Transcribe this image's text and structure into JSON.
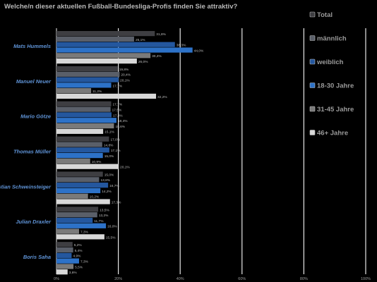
{
  "title": "Welche/n dieser aktuellen Fußball-Bundesliga-Profis finden Sie attraktiv?",
  "chart_data": {
    "type": "bar",
    "orientation": "horizontal",
    "title": "Welche/n dieser aktuellen Fußball-Bundesliga-Profis finden Sie attraktiv?",
    "categories": [
      "Mats Hummels",
      "Manuel Neuer",
      "Mario Götze",
      "Thomas Müller",
      "Bastian Schweinsteiger",
      "Julian Draxler",
      "Boris Saha"
    ],
    "series": [
      {
        "name": "Total",
        "color": "#3e3e42",
        "values": [
          31.8,
          19.8,
          17.7,
          17.0,
          15.0,
          13.5,
          5.2
        ]
      },
      {
        "name": "männlich",
        "color": "#5a5f69",
        "values": [
          25.1,
          20.4,
          17.5,
          14.8,
          13.8,
          13.2,
          5.4
        ]
      },
      {
        "name": "weiblich",
        "color": "#24579e",
        "values": [
          38.3,
          20.1,
          17.8,
          17.1,
          16.7,
          11.7,
          4.9
        ]
      },
      {
        "name": "18-30 Jahre",
        "color": "#2d72c8",
        "values": [
          44.0,
          17.7,
          19.4,
          15.0,
          14.2,
          16.0,
          7.3
        ]
      },
      {
        "name": "31-45 Jahre",
        "color": "#7a7a7a",
        "values": [
          30.4,
          11.2,
          18.6,
          10.9,
          10.2,
          7.3,
          5.5
        ]
      },
      {
        "name": "46+ Jahre",
        "color": "#d8d8d8",
        "values": [
          26.0,
          32.2,
          15.1,
          20.1,
          17.3,
          15.5,
          3.6
        ]
      }
    ],
    "value_labels": [
      [
        "31,8%",
        "25,1%",
        "38,3%",
        "44,0%",
        "30,4%",
        "26,0%"
      ],
      [
        "19,8%",
        "20,4%",
        "20,1%",
        "17,7%",
        "11,2%",
        "32,2%"
      ],
      [
        "17,7%",
        "17,5%",
        "17,8%",
        "19,4%",
        "18,6%",
        "15,1%"
      ],
      [
        "17,0%",
        "14,8%",
        "17,1%",
        "15,0%",
        "10,9%",
        "20,1%"
      ],
      [
        "15,0%",
        "13,8%",
        "16,7%",
        "14,2%",
        "10,2%",
        "17,3%"
      ],
      [
        "13,5%",
        "13,2%",
        "11,7%",
        "16,0%",
        "7,3%",
        "15,5%"
      ],
      [
        "5,2%",
        "5,4%",
        "4,9%",
        "7,3%",
        "5,5%",
        "3,6%"
      ]
    ],
    "xlim": [
      0,
      100
    ],
    "xticks": [
      "0%",
      "20%",
      "40%",
      "60%",
      "80%",
      "100%"
    ],
    "grid": true,
    "legend": "right"
  }
}
